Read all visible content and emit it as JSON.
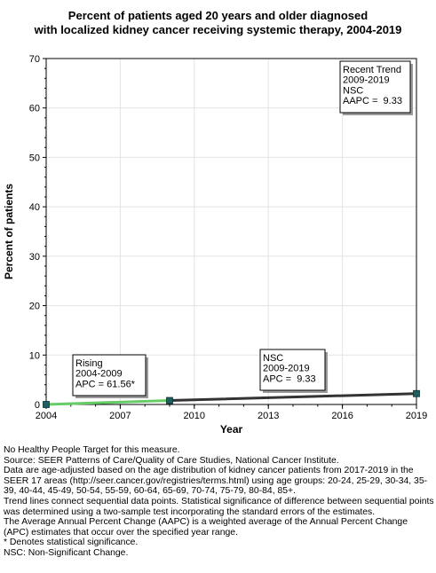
{
  "chart_data": {
    "type": "line",
    "title_lines": [
      "Percent of patients aged 20 years and older diagnosed",
      "with localized kidney cancer receiving systemic therapy, 2004-2019"
    ],
    "xlabel": "Year",
    "ylabel": "Percent of patients",
    "xlim": [
      2004,
      2019
    ],
    "ylim": [
      0,
      70
    ],
    "x_ticks": [
      "2004",
      "2007",
      "2010",
      "2013",
      "2016",
      "2019"
    ],
    "y_ticks": [
      "0",
      "10",
      "20",
      "30",
      "40",
      "50",
      "60",
      "70"
    ],
    "grid": true,
    "points": [
      {
        "x": 2004,
        "y": 0.0
      },
      {
        "x": 2009,
        "y": 0.8
      },
      {
        "x": 2019,
        "y": 2.2
      }
    ],
    "segments": [
      {
        "x": [
          2004,
          2009
        ],
        "y": [
          0.0,
          0.8
        ],
        "color": "#66cc66"
      },
      {
        "x": [
          2009,
          2019
        ],
        "y": [
          0.8,
          2.2
        ],
        "color": "#333333"
      }
    ],
    "marker_color": "#1f5f5f",
    "annotations": [
      {
        "lines": [
          "Rising",
          "2004-2009",
          "APC = 61.56*"
        ],
        "placement": "above first segment"
      },
      {
        "lines": [
          "NSC",
          "2009-2019",
          "APC =  9.33"
        ],
        "placement": "above second segment"
      },
      {
        "lines": [
          "Recent Trend",
          "2009-2019",
          "NSC",
          "AAPC =  9.33"
        ],
        "placement": "top-right"
      }
    ]
  },
  "footnotes": [
    "No Healthy People Target for this measure.",
    "Source: SEER Patterns of Care/Quality of Care Studies, National Cancer Institute.",
    "Data are age-adjusted based on the age distribution of kidney cancer patients from 2017-2019 in the SEER 17 areas (http://seer.cancer.gov/registries/terms.html) using age groups: 20-24, 25-29, 30-34, 35-39, 40-44, 45-49, 50-54, 55-59, 60-64, 65-69, 70-74, 75-79, 80-84, 85+.",
    "Trend lines connect sequential data points. Statistical significance of difference between sequential points was determined using a two-sample test incorporating the standard errors of the estimates.",
    "The Average Annual Percent Change (AAPC) is a weighted average of the Annual Percent Change (APC) estimates that occur over the specified year range.",
    "* Denotes statistical significance.",
    "NSC: Non-Significant Change."
  ]
}
